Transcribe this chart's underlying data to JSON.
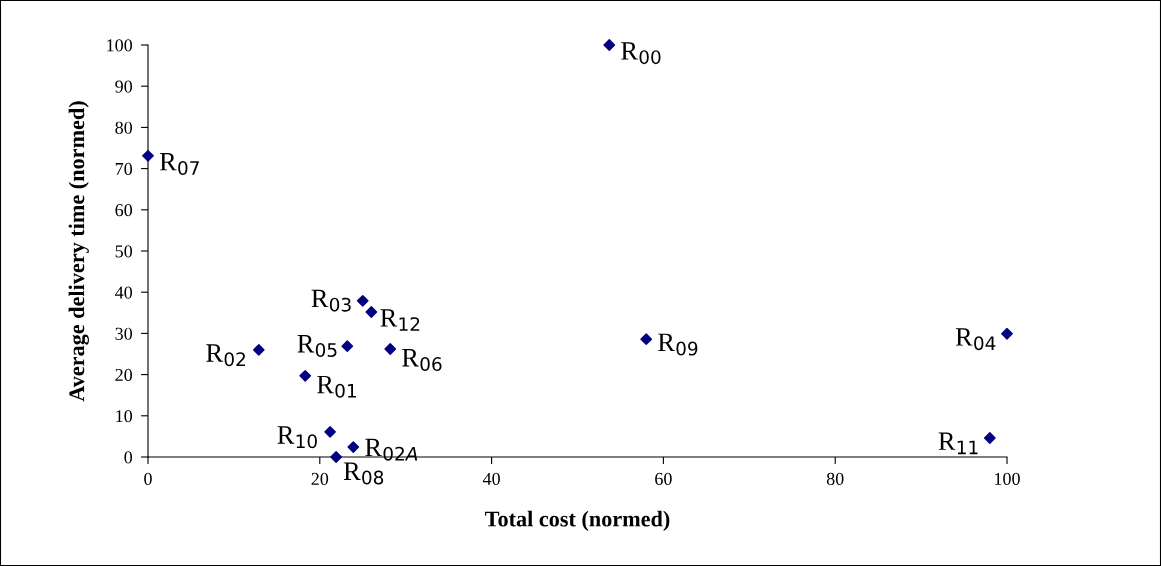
{
  "chart_data": {
    "type": "scatter",
    "xlabel": "Total cost (normed)",
    "ylabel": "Average delivery time (normed)",
    "xlim": [
      0,
      100
    ],
    "xticks": [
      0,
      20,
      40,
      60,
      80,
      100
    ],
    "ylim": [
      0,
      100
    ],
    "yticks": [
      0,
      10,
      20,
      30,
      40,
      50,
      60,
      70,
      80,
      90,
      100
    ],
    "grid": false,
    "legend": false,
    "marker": "diamond",
    "series": [
      {
        "color": "#000080",
        "x": [
          53.7,
          0,
          25.0,
          26.0,
          23.2,
          28.2,
          12.9,
          18.3,
          58.0,
          100,
          21.2,
          23.9,
          21.9,
          98.0
        ],
        "values": [
          100,
          73.1,
          37.9,
          35.2,
          26.9,
          26.2,
          26.0,
          19.7,
          28.6,
          29.9,
          6.1,
          2.4,
          0,
          4.6
        ]
      }
    ],
    "annotations": [
      {
        "text": "R$_{00}$",
        "x": 53.7,
        "y": 100
      },
      {
        "text": "R$_{07}$",
        "x": 0,
        "y": 73.1
      },
      {
        "text": "R$_{03}$",
        "x": 25.0,
        "y": 37.9
      },
      {
        "text": "R$_{12}$",
        "x": 26.0,
        "y": 35.2
      },
      {
        "text": "R$_{05}$",
        "x": 23.2,
        "y": 26.9
      },
      {
        "text": "R$_{06}$",
        "x": 28.2,
        "y": 26.2
      },
      {
        "text": "R$_{02}$",
        "x": 12.9,
        "y": 26.0
      },
      {
        "text": "R$_{01}$",
        "x": 18.3,
        "y": 19.7
      },
      {
        "text": "R$_{09}$",
        "x": 58.0,
        "y": 28.6
      },
      {
        "text": "R$_{04}$",
        "x": 100,
        "y": 29.9
      },
      {
        "text": "R$_{10}$",
        "x": 21.2,
        "y": 6.1
      },
      {
        "text": "R$_{02A}$",
        "x": 23.9,
        "y": 2.4
      },
      {
        "text": "R$_{08}$",
        "x": 21.9,
        "y": 0
      },
      {
        "text": "R$_{11}$",
        "x": 98.0,
        "y": 4.6
      }
    ]
  }
}
